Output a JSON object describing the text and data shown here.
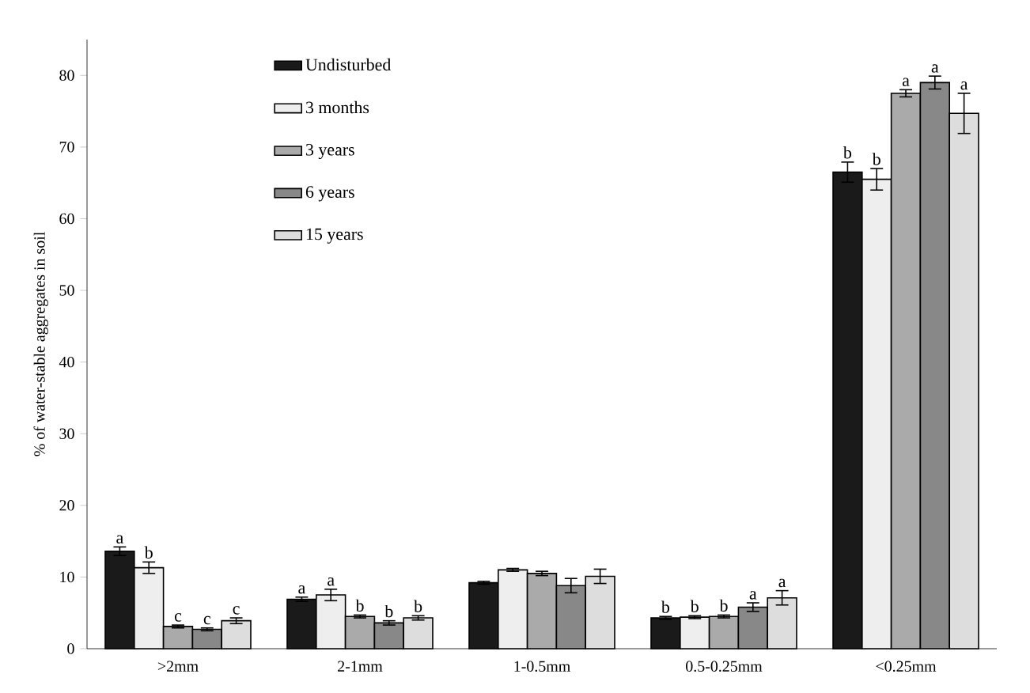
{
  "chart_data": {
    "type": "bar",
    "ylabel": "% of water-stable aggregates in soil",
    "categories": [
      ">2mm",
      "2-1mm",
      "1-0.5mm",
      "0.5-0.25mm",
      "<0.25mm"
    ],
    "ylim": [
      0,
      85
    ],
    "yticks": [
      0,
      10,
      20,
      30,
      40,
      50,
      60,
      70,
      80
    ],
    "legend": "top left",
    "series": [
      {
        "name": "Undisturbed",
        "color": "#1a1a1a",
        "values": [
          13.6,
          6.9,
          9.2,
          4.3,
          66.5
        ],
        "errors": [
          0.6,
          0.3,
          0.2,
          0.2,
          1.4
        ],
        "value_labels": [
          "a",
          "a",
          null,
          "b",
          "b"
        ]
      },
      {
        "name": "3 months",
        "color": "#eeeeee",
        "values": [
          11.3,
          7.5,
          11.0,
          4.4,
          65.5
        ],
        "errors": [
          0.8,
          0.8,
          0.2,
          0.2,
          1.5
        ],
        "value_labels": [
          "b",
          "a",
          null,
          "b",
          "b"
        ]
      },
      {
        "name": "3 years",
        "color": "#aaaaaa",
        "values": [
          3.1,
          4.5,
          10.5,
          4.5,
          77.5
        ],
        "errors": [
          0.2,
          0.2,
          0.3,
          0.2,
          0.5
        ],
        "value_labels": [
          "c",
          "b",
          null,
          "b",
          "a"
        ]
      },
      {
        "name": "6 years",
        "color": "#888888",
        "values": [
          2.7,
          3.6,
          8.8,
          5.8,
          79.0
        ],
        "errors": [
          0.2,
          0.3,
          1.0,
          0.6,
          0.9
        ],
        "value_labels": [
          "c",
          "b",
          null,
          "a",
          "a"
        ]
      },
      {
        "name": "15 years",
        "color": "#dddddd",
        "values": [
          3.9,
          4.3,
          10.1,
          7.1,
          74.7
        ],
        "errors": [
          0.4,
          0.3,
          1.0,
          1.0,
          2.8
        ],
        "value_labels": [
          "c",
          "b",
          null,
          "a",
          "a"
        ]
      }
    ]
  }
}
